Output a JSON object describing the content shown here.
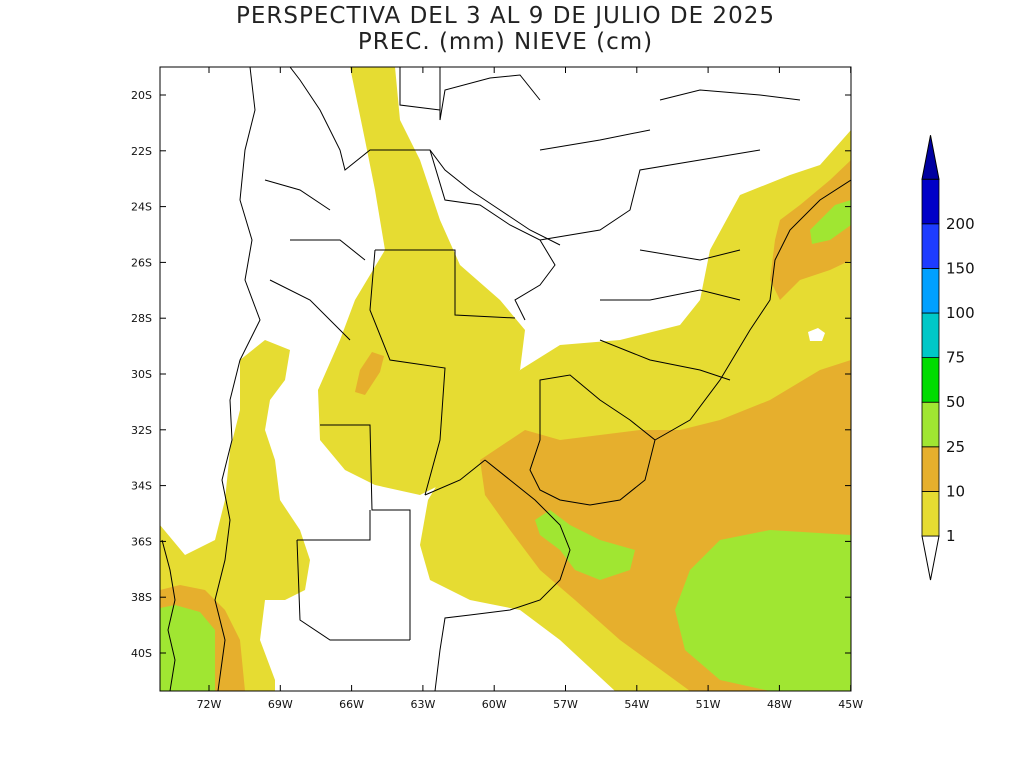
{
  "title_line1": "PERSPECTIVA DEL 3 AL 9 DE JULIO DE 2025",
  "title_line2": "PREC. (mm) NIEVE (cm)",
  "lat_labels": [
    "20S",
    "22S",
    "24S",
    "26S",
    "28S",
    "30S",
    "32S",
    "34S",
    "36S",
    "38S",
    "40S"
  ],
  "lon_labels": [
    "72W",
    "69W",
    "66W",
    "63W",
    "60W",
    "57W",
    "54W",
    "51W",
    "48W",
    "45W"
  ],
  "legend": {
    "classes": [
      {
        "label": "1",
        "color": "#e6dc32"
      },
      {
        "label": "10",
        "color": "#e6af2d"
      },
      {
        "label": "25",
        "color": "#a0e632"
      },
      {
        "label": "50",
        "color": "#00dc00"
      },
      {
        "label": "75",
        "color": "#00c8c8"
      },
      {
        "label": "100",
        "color": "#00a0ff"
      },
      {
        "label": "150",
        "color": "#1e3cff"
      },
      {
        "label": "200",
        "color": "#0000c8"
      }
    ],
    "under_color": "#ffffff",
    "over_color": "#0000a0"
  },
  "colors": {
    "cat1": "#e6dc32",
    "cat10": "#e6af2d",
    "cat25": "#a0e632",
    "border": "#000000",
    "background": "#ffffff"
  }
}
